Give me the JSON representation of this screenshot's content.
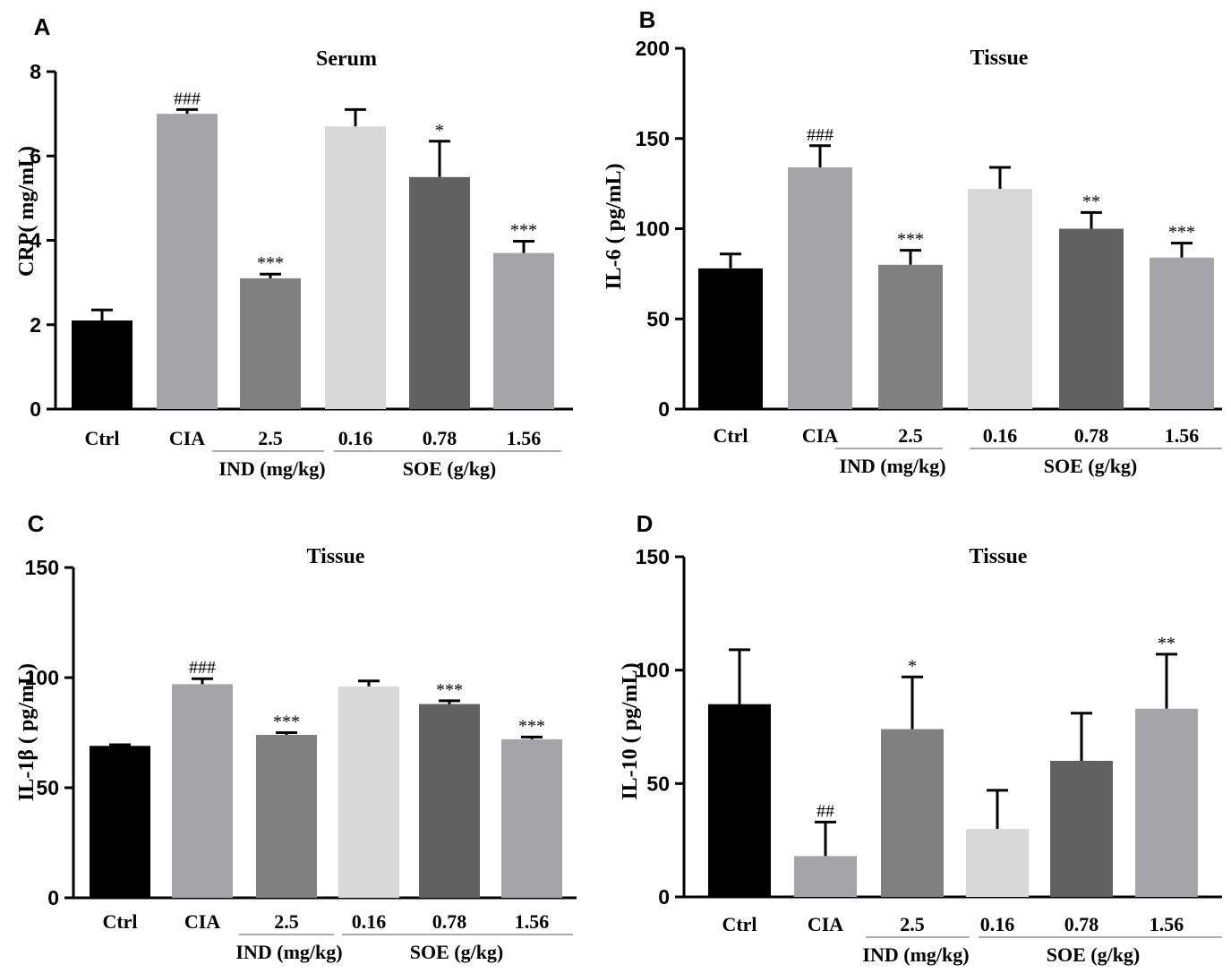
{
  "chart_data": [
    {
      "type": "bar",
      "panel": "A",
      "title": "Serum",
      "ylabel": "CRP( mg/mL)",
      "ylim": [
        0,
        8
      ],
      "yticks": [
        "0",
        "2",
        "4",
        "6",
        "8"
      ],
      "categories": [
        "Ctrl",
        "CIA",
        "2.5",
        "0.16",
        "0.78",
        "1.56"
      ],
      "values": [
        2.1,
        7.0,
        3.1,
        6.7,
        5.5,
        3.7
      ],
      "errors": [
        0.25,
        0.1,
        0.1,
        0.4,
        0.85,
        0.28
      ],
      "significance": [
        "",
        "###",
        "***",
        "",
        "*",
        "***"
      ],
      "groups": [
        {
          "label": "IND (mg/kg)",
          "from": 2,
          "to": 2
        },
        {
          "label": "SOE (g/kg)",
          "from": 3,
          "to": 5
        }
      ]
    },
    {
      "type": "bar",
      "panel": "B",
      "title": "Tissue",
      "ylabel": "IL-6 ( pg/mL)",
      "ylim": [
        0,
        200
      ],
      "yticks": [
        "0",
        "50",
        "100",
        "150",
        "200"
      ],
      "categories": [
        "Ctrl",
        "CIA",
        "2.5",
        "0.16",
        "0.78",
        "1.56"
      ],
      "values": [
        78,
        134,
        80,
        122,
        100,
        84
      ],
      "errors": [
        8,
        12,
        8,
        12,
        9,
        8
      ],
      "significance": [
        "",
        "###",
        "***",
        "",
        "**",
        "***"
      ],
      "groups": [
        {
          "label": "IND (mg/kg)",
          "from": 2,
          "to": 2
        },
        {
          "label": "SOE (g/kg)",
          "from": 3,
          "to": 5
        }
      ]
    },
    {
      "type": "bar",
      "panel": "C",
      "title": "Tissue",
      "ylabel": "IL-1β ( pg/mL)",
      "ylim": [
        0,
        150
      ],
      "yticks": [
        "0",
        "50",
        "100",
        "150"
      ],
      "categories": [
        "Ctrl",
        "CIA",
        "2.5",
        "0.16",
        "0.78",
        "1.56"
      ],
      "values": [
        69,
        97,
        74,
        96,
        88,
        72
      ],
      "errors": [
        0.5,
        2.5,
        1,
        2.5,
        1.5,
        1
      ],
      "significance": [
        "",
        "###",
        "***",
        "",
        "***",
        "***"
      ],
      "groups": [
        {
          "label": "IND (mg/kg)",
          "from": 2,
          "to": 2
        },
        {
          "label": "SOE (g/kg)",
          "from": 3,
          "to": 5
        }
      ]
    },
    {
      "type": "bar",
      "panel": "D",
      "title": "Tissue",
      "ylabel": "IL-10 ( pg/mL)",
      "ylim": [
        0,
        150
      ],
      "yticks": [
        "0",
        "50",
        "100",
        "150"
      ],
      "categories": [
        "Ctrl",
        "CIA",
        "2.5",
        "0.16",
        "0.78",
        "1.56"
      ],
      "values": [
        85,
        18,
        74,
        30,
        60,
        83
      ],
      "errors": [
        24,
        15,
        23,
        17,
        21,
        24
      ],
      "significance": [
        "",
        "##",
        "*",
        "",
        "",
        "**"
      ],
      "groups": [
        {
          "label": "IND (mg/kg)",
          "from": 2,
          "to": 2
        },
        {
          "label": "SOE (g/kg)",
          "from": 3,
          "to": 5
        }
      ]
    }
  ],
  "bar_colors": [
    "#000000",
    "#a3a3a8",
    "#808080",
    "#d8d8d8",
    "#616161",
    "#a3a3a8"
  ]
}
